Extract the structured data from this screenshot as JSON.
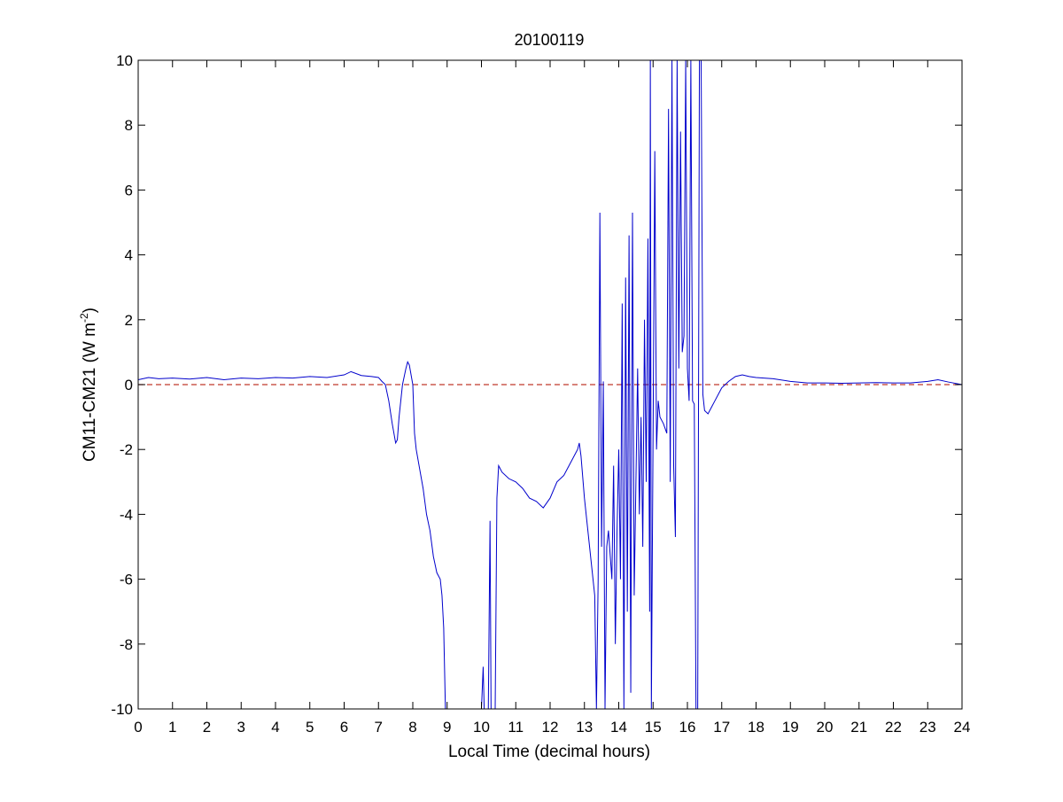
{
  "chart_data": {
    "type": "line",
    "title": "20100119",
    "xlabel": "Local Time (decimal hours)",
    "ylabel_main": "CM11-CM21 (W m",
    "ylabel_sup": "-2",
    "ylabel_tail": ")",
    "xlim": [
      0,
      24
    ],
    "ylim": [
      -10,
      10
    ],
    "xticks": [
      "0",
      "1",
      "2",
      "3",
      "4",
      "5",
      "6",
      "7",
      "8",
      "9",
      "10",
      "11",
      "12",
      "13",
      "14",
      "15",
      "16",
      "17",
      "18",
      "19",
      "20",
      "21",
      "22",
      "23",
      "24"
    ],
    "yticks": [
      "-10",
      "-8",
      "-6",
      "-4",
      "-2",
      "0",
      "2",
      "4",
      "6",
      "8",
      "10"
    ],
    "grid": false,
    "reference_line": {
      "y": 0,
      "color": "#c0392b",
      "style": "dashed"
    },
    "series": [
      {
        "color": "#0000cc",
        "points": [
          [
            0.0,
            0.15
          ],
          [
            0.3,
            0.22
          ],
          [
            0.6,
            0.18
          ],
          [
            1.0,
            0.2
          ],
          [
            1.5,
            0.17
          ],
          [
            2.0,
            0.22
          ],
          [
            2.5,
            0.15
          ],
          [
            3.0,
            0.2
          ],
          [
            3.5,
            0.18
          ],
          [
            4.0,
            0.22
          ],
          [
            4.5,
            0.2
          ],
          [
            5.0,
            0.25
          ],
          [
            5.5,
            0.22
          ],
          [
            6.0,
            0.3
          ],
          [
            6.2,
            0.4
          ],
          [
            6.5,
            0.28
          ],
          [
            6.8,
            0.25
          ],
          [
            7.0,
            0.22
          ],
          [
            7.1,
            0.1
          ],
          [
            7.2,
            0.0
          ],
          [
            7.3,
            -0.5
          ],
          [
            7.4,
            -1.2
          ],
          [
            7.5,
            -1.8
          ],
          [
            7.55,
            -1.7
          ],
          [
            7.6,
            -1.0
          ],
          [
            7.7,
            0.0
          ],
          [
            7.8,
            0.5
          ],
          [
            7.85,
            0.7
          ],
          [
            7.9,
            0.6
          ],
          [
            8.0,
            0.0
          ],
          [
            8.05,
            -1.5
          ],
          [
            8.1,
            -2.0
          ],
          [
            8.2,
            -2.6
          ],
          [
            8.3,
            -3.2
          ],
          [
            8.4,
            -4.0
          ],
          [
            8.5,
            -4.5
          ],
          [
            8.6,
            -5.3
          ],
          [
            8.7,
            -5.8
          ],
          [
            8.8,
            -6.0
          ],
          [
            8.85,
            -6.5
          ],
          [
            8.9,
            -7.5
          ],
          [
            8.95,
            -10.0
          ],
          [
            9.0,
            -10.0
          ],
          [
            10.0,
            -10.0
          ],
          [
            10.05,
            -8.7
          ],
          [
            10.08,
            -10.0
          ],
          [
            10.2,
            -10.0
          ],
          [
            10.25,
            -4.2
          ],
          [
            10.28,
            -10.0
          ],
          [
            10.4,
            -10.0
          ],
          [
            10.45,
            -3.5
          ],
          [
            10.5,
            -2.5
          ],
          [
            10.6,
            -2.7
          ],
          [
            10.8,
            -2.9
          ],
          [
            11.0,
            -3.0
          ],
          [
            11.2,
            -3.2
          ],
          [
            11.4,
            -3.5
          ],
          [
            11.6,
            -3.6
          ],
          [
            11.8,
            -3.8
          ],
          [
            12.0,
            -3.5
          ],
          [
            12.2,
            -3.0
          ],
          [
            12.4,
            -2.8
          ],
          [
            12.6,
            -2.4
          ],
          [
            12.8,
            -2.0
          ],
          [
            12.85,
            -1.8
          ],
          [
            12.9,
            -2.2
          ],
          [
            13.0,
            -3.5
          ],
          [
            13.1,
            -4.5
          ],
          [
            13.2,
            -5.5
          ],
          [
            13.3,
            -6.5
          ],
          [
            13.35,
            -10.0
          ],
          [
            13.4,
            -6.0
          ],
          [
            13.45,
            5.3
          ],
          [
            13.5,
            -5.0
          ],
          [
            13.55,
            0.1
          ],
          [
            13.6,
            -10.0
          ],
          [
            13.65,
            -5.0
          ],
          [
            13.7,
            -4.5
          ],
          [
            13.8,
            -6.0
          ],
          [
            13.85,
            -2.5
          ],
          [
            13.9,
            -8.0
          ],
          [
            13.95,
            -4.5
          ],
          [
            14.0,
            -2.0
          ],
          [
            14.05,
            -6.0
          ],
          [
            14.1,
            2.5
          ],
          [
            14.15,
            -10.0
          ],
          [
            14.2,
            3.3
          ],
          [
            14.25,
            -7.0
          ],
          [
            14.3,
            4.6
          ],
          [
            14.35,
            -9.5
          ],
          [
            14.4,
            5.3
          ],
          [
            14.45,
            -6.5
          ],
          [
            14.5,
            -3.0
          ],
          [
            14.55,
            0.5
          ],
          [
            14.6,
            -4.0
          ],
          [
            14.65,
            -1.0
          ],
          [
            14.7,
            -5.0
          ],
          [
            14.75,
            2.0
          ],
          [
            14.8,
            -3.0
          ],
          [
            14.85,
            4.5
          ],
          [
            14.9,
            -7.0
          ],
          [
            14.92,
            10.0
          ],
          [
            14.95,
            -10.0
          ],
          [
            15.0,
            -1.5
          ],
          [
            15.05,
            7.2
          ],
          [
            15.1,
            -2.0
          ],
          [
            15.15,
            -0.5
          ],
          [
            15.2,
            -1.0
          ],
          [
            15.3,
            -1.2
          ],
          [
            15.4,
            -1.5
          ],
          [
            15.45,
            8.5
          ],
          [
            15.5,
            -3.0
          ],
          [
            15.55,
            10.0
          ],
          [
            15.6,
            -2.5
          ],
          [
            15.65,
            -4.7
          ],
          [
            15.7,
            10.0
          ],
          [
            15.75,
            0.5
          ],
          [
            15.8,
            7.8
          ],
          [
            15.85,
            1.0
          ],
          [
            15.9,
            1.5
          ],
          [
            15.95,
            10.0
          ],
          [
            16.0,
            0.5
          ],
          [
            16.05,
            -0.5
          ],
          [
            16.1,
            10.0
          ],
          [
            16.15,
            -0.5
          ],
          [
            16.2,
            -0.6
          ],
          [
            16.25,
            -10.0
          ],
          [
            16.3,
            -10.0
          ],
          [
            16.35,
            10.0
          ],
          [
            16.4,
            10.0
          ],
          [
            16.45,
            -0.3
          ],
          [
            16.5,
            -0.8
          ],
          [
            16.6,
            -0.9
          ],
          [
            16.7,
            -0.7
          ],
          [
            16.8,
            -0.5
          ],
          [
            16.9,
            -0.3
          ],
          [
            17.0,
            -0.1
          ],
          [
            17.2,
            0.1
          ],
          [
            17.4,
            0.25
          ],
          [
            17.6,
            0.3
          ],
          [
            17.8,
            0.25
          ],
          [
            18.0,
            0.22
          ],
          [
            18.5,
            0.18
          ],
          [
            19.0,
            0.1
          ],
          [
            19.5,
            0.05
          ],
          [
            20.0,
            0.05
          ],
          [
            20.5,
            0.04
          ],
          [
            21.0,
            0.05
          ],
          [
            21.5,
            0.06
          ],
          [
            22.0,
            0.05
          ],
          [
            22.5,
            0.05
          ],
          [
            23.0,
            0.1
          ],
          [
            23.3,
            0.15
          ],
          [
            23.6,
            0.08
          ],
          [
            24.0,
            0.0
          ]
        ]
      }
    ]
  }
}
